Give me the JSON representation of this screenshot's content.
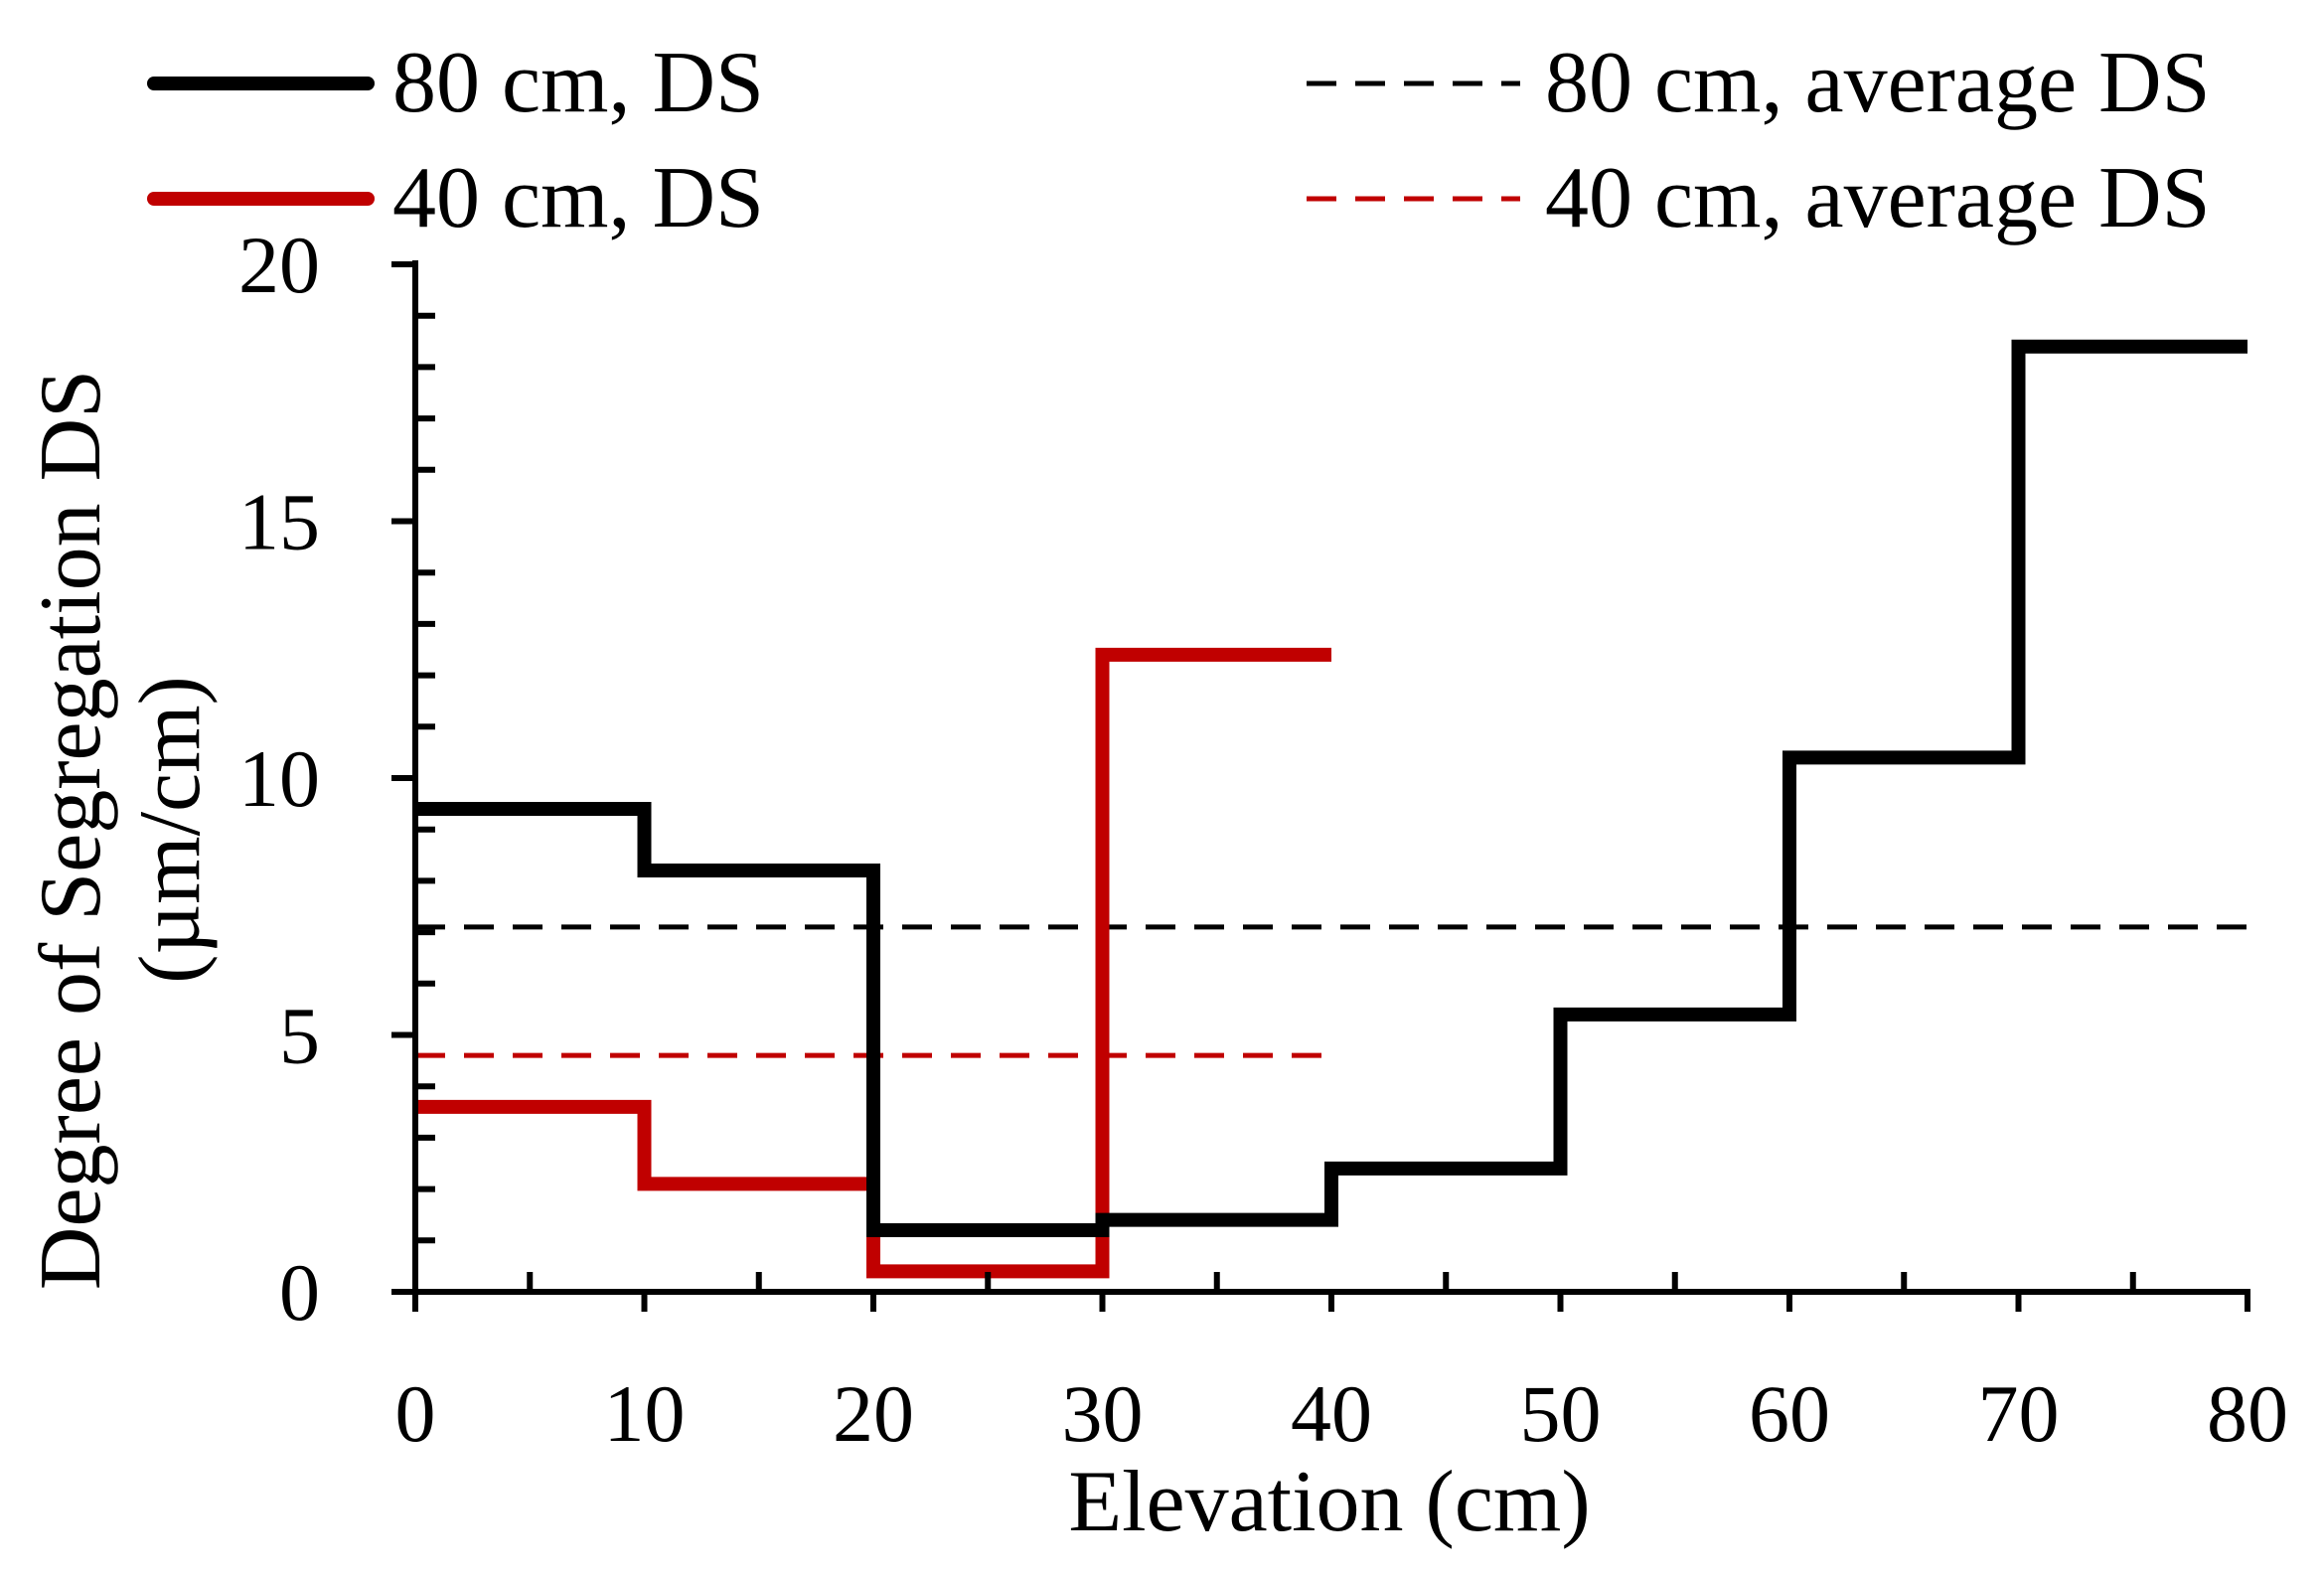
{
  "chart_data": {
    "type": "line",
    "title": "",
    "xlabel": "Elevation (cm)",
    "ylabel_line1": "Degree of Segregation DS",
    "ylabel_line2": "(µm/cm)",
    "xlim": [
      0,
      80
    ],
    "ylim": [
      0,
      20
    ],
    "x_ticks": [
      0,
      10,
      20,
      30,
      40,
      50,
      60,
      70,
      80
    ],
    "x_tick_labels": [
      "0",
      "10",
      "20",
      "30",
      "40",
      "50",
      "60",
      "70",
      "80"
    ],
    "y_ticks": [
      0,
      5,
      10,
      15,
      20
    ],
    "y_tick_labels": [
      "0",
      "5",
      "10",
      "15",
      "20"
    ],
    "grid": false,
    "legend_position": "top",
    "series": [
      {
        "name": "80 cm, DS",
        "style": "solid-step",
        "color": "#000000",
        "bin_edges": [
          0,
          10,
          20,
          30,
          40,
          50,
          60,
          70,
          80
        ],
        "values": [
          9.4,
          8.2,
          1.2,
          1.4,
          2.4,
          5.4,
          10.4,
          18.4
        ]
      },
      {
        "name": "40 cm, DS",
        "style": "solid-step",
        "color": "#c00000",
        "bin_edges": [
          0,
          10,
          20,
          30,
          40
        ],
        "values": [
          3.6,
          2.1,
          0.4,
          12.4
        ]
      },
      {
        "name": "80 cm, average DS",
        "style": "dashed",
        "color": "#000000",
        "x": [
          0,
          80
        ],
        "values": [
          7.1,
          7.1
        ]
      },
      {
        "name": "40 cm, average DS",
        "style": "dashed",
        "color": "#c00000",
        "x": [
          0,
          40
        ],
        "values": [
          4.6,
          4.6
        ]
      }
    ]
  }
}
